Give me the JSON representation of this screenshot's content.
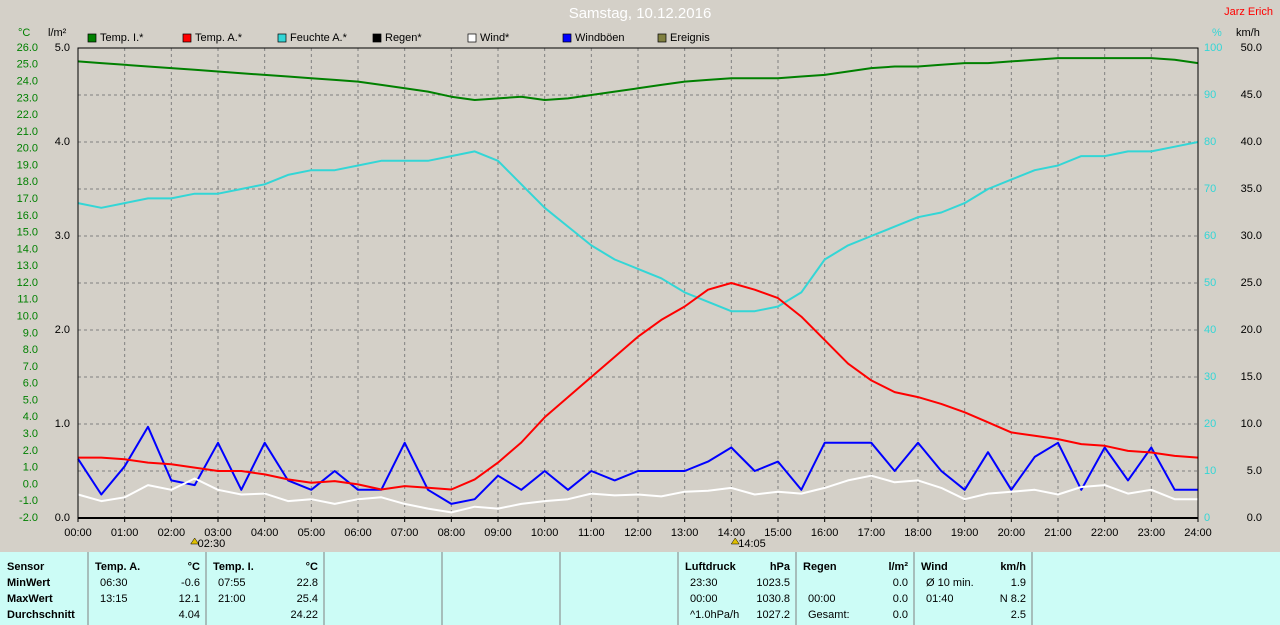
{
  "chart_data": {
    "type": "line",
    "title": "Samstag, 10.12.2016",
    "author": "Jarz Erich",
    "y_label": "°C",
    "y4_label": "l/m²",
    "y2_label": "%",
    "y3_label": "km/h",
    "grid": true,
    "x": [
      0,
      0.5,
      1,
      1.5,
      2,
      2.5,
      3,
      3.5,
      4,
      4.5,
      5,
      5.5,
      6,
      6.5,
      7,
      7.5,
      8,
      8.5,
      9,
      9.5,
      10,
      10.5,
      11,
      11.5,
      12,
      12.5,
      13,
      13.5,
      14,
      14.5,
      15,
      15.5,
      16,
      16.5,
      17,
      17.5,
      18,
      18.5,
      19,
      19.5,
      20,
      20.5,
      21,
      21.5,
      22,
      22.5,
      23,
      23.5,
      24
    ],
    "xlim": [
      0,
      24
    ],
    "xticks": [
      {
        "value": 0,
        "label": "00:00"
      },
      {
        "value": 1,
        "label": "01:00"
      },
      {
        "value": 2,
        "label": "02:00"
      },
      {
        "value": 3,
        "label": "03:00"
      },
      {
        "value": 4,
        "label": "04:00"
      },
      {
        "value": 5,
        "label": "05:00"
      },
      {
        "value": 6,
        "label": "06:00"
      },
      {
        "value": 7,
        "label": "07:00"
      },
      {
        "value": 8,
        "label": "08:00"
      },
      {
        "value": 9,
        "label": "09:00"
      },
      {
        "value": 10,
        "label": "10:00"
      },
      {
        "value": 11,
        "label": "11:00"
      },
      {
        "value": 12,
        "label": "12:00"
      },
      {
        "value": 13,
        "label": "13:00"
      },
      {
        "value": 14,
        "label": "14:00"
      },
      {
        "value": 15,
        "label": "15:00"
      },
      {
        "value": 16,
        "label": "16:00"
      },
      {
        "value": 17,
        "label": "17:00"
      },
      {
        "value": 18,
        "label": "18:00"
      },
      {
        "value": 19,
        "label": "19:00"
      },
      {
        "value": 20,
        "label": "20:00"
      },
      {
        "value": 21,
        "label": "21:00"
      },
      {
        "value": 22,
        "label": "22:00"
      },
      {
        "value": 23,
        "label": "23:00"
      },
      {
        "value": 24,
        "label": "24:00"
      }
    ],
    "ylim": [
      -2,
      26
    ],
    "yticks": [
      {
        "value": 26,
        "label": "26.0"
      },
      {
        "value": 25,
        "label": "25.0"
      },
      {
        "value": 24,
        "label": "24.0"
      },
      {
        "value": 23,
        "label": "23.0"
      },
      {
        "value": 22,
        "label": "22.0"
      },
      {
        "value": 21,
        "label": "21.0"
      },
      {
        "value": 20,
        "label": "20.0"
      },
      {
        "value": 19,
        "label": "19.0"
      },
      {
        "value": 18,
        "label": "18.0"
      },
      {
        "value": 17,
        "label": "17.0"
      },
      {
        "value": 16,
        "label": "16.0"
      },
      {
        "value": 15,
        "label": "15.0"
      },
      {
        "value": 14,
        "label": "14.0"
      },
      {
        "value": 13,
        "label": "13.0"
      },
      {
        "value": 12,
        "label": "12.0"
      },
      {
        "value": 11,
        "label": "11.0"
      },
      {
        "value": 10,
        "label": "10.0"
      },
      {
        "value": 9,
        "label": "9.0"
      },
      {
        "value": 8,
        "label": "8.0"
      },
      {
        "value": 7,
        "label": "7.0"
      },
      {
        "value": 6,
        "label": "6.0"
      },
      {
        "value": 5,
        "label": "5.0"
      },
      {
        "value": 4,
        "label": "4.0"
      },
      {
        "value": 3,
        "label": "3.0"
      },
      {
        "value": 2,
        "label": "2.0"
      },
      {
        "value": 1,
        "label": "1.0"
      },
      {
        "value": 0,
        "label": "0.0"
      },
      {
        "value": -1,
        "label": "-1.0"
      },
      {
        "value": -2,
        "label": "-2.0"
      }
    ],
    "y4lim": [
      0,
      5
    ],
    "y4ticks": [
      {
        "value": 5,
        "label": "5.0"
      },
      {
        "value": 4,
        "label": "4.0"
      },
      {
        "value": 3,
        "label": "3.0"
      },
      {
        "value": 2,
        "label": "2.0"
      },
      {
        "value": 1,
        "label": "1.0"
      },
      {
        "value": 0,
        "label": "0.0"
      }
    ],
    "y2lim": [
      0,
      100
    ],
    "y2ticks": [
      100,
      90,
      80,
      70,
      60,
      50,
      40,
      30,
      20,
      10,
      0
    ],
    "y3lim": [
      0,
      50
    ],
    "y3ticks": [
      {
        "value": 50,
        "label": "50.0"
      },
      {
        "value": 45,
        "label": "45.0"
      },
      {
        "value": 40,
        "label": "40.0"
      },
      {
        "value": 35,
        "label": "35.0"
      },
      {
        "value": 30,
        "label": "30.0"
      },
      {
        "value": 25,
        "label": "25.0"
      },
      {
        "value": 20,
        "label": "20.0"
      },
      {
        "value": 15,
        "label": "15.0"
      },
      {
        "value": 10,
        "label": "10.0"
      },
      {
        "value": 5,
        "label": "5.0"
      },
      {
        "value": 0,
        "label": "0.0"
      }
    ],
    "series": [
      {
        "name": "Temp. I.*",
        "color": "#008000",
        "axis": "y",
        "values": [
          25.2,
          25.1,
          25.0,
          24.9,
          24.8,
          24.7,
          24.6,
          24.5,
          24.4,
          24.3,
          24.2,
          24.1,
          24.0,
          23.8,
          23.6,
          23.4,
          23.1,
          22.9,
          23.0,
          23.1,
          22.9,
          23.0,
          23.2,
          23.4,
          23.6,
          23.8,
          24.0,
          24.1,
          24.2,
          24.2,
          24.2,
          24.3,
          24.4,
          24.6,
          24.8,
          24.9,
          24.9,
          25.0,
          25.1,
          25.1,
          25.2,
          25.3,
          25.4,
          25.4,
          25.4,
          25.4,
          25.4,
          25.3,
          25.1
        ]
      },
      {
        "name": "Temp. A.*",
        "color": "#ff0000",
        "axis": "y",
        "values": [
          1.6,
          1.6,
          1.5,
          1.3,
          1.2,
          1.0,
          0.8,
          0.8,
          0.6,
          0.3,
          0.1,
          0.2,
          0.0,
          -0.3,
          -0.1,
          -0.2,
          -0.3,
          0.3,
          1.3,
          2.5,
          4.0,
          5.2,
          6.4,
          7.6,
          8.8,
          9.8,
          10.6,
          11.6,
          12.0,
          11.6,
          11.1,
          10.0,
          8.6,
          7.2,
          6.2,
          5.5,
          5.2,
          4.8,
          4.3,
          3.7,
          3.1,
          2.9,
          2.7,
          2.4,
          2.3,
          2.0,
          1.9,
          1.7,
          1.6
        ]
      },
      {
        "name": "Feuchte A.*",
        "color": "#33d6d6",
        "axis": "y2",
        "values": [
          67,
          66,
          67,
          68,
          68,
          69,
          69,
          70,
          71,
          73,
          74,
          74,
          75,
          76,
          76,
          76,
          77,
          78,
          76,
          71,
          66,
          62,
          58,
          55,
          53,
          51,
          48,
          46,
          44,
          44,
          45,
          48,
          55,
          58,
          60,
          62,
          64,
          65,
          67,
          70,
          72,
          74,
          75,
          77,
          77,
          78,
          78,
          79,
          80
        ]
      },
      {
        "name": "Regen*",
        "color": "#000000",
        "axis": "y4",
        "values": [
          0,
          0,
          0,
          0,
          0,
          0,
          0,
          0,
          0,
          0,
          0,
          0,
          0,
          0,
          0,
          0,
          0,
          0,
          0,
          0,
          0,
          0,
          0,
          0,
          0,
          0,
          0,
          0,
          0,
          0,
          0,
          0,
          0,
          0,
          0,
          0,
          0,
          0,
          0,
          0,
          0,
          0,
          0,
          0,
          0,
          0,
          0,
          0,
          0
        ]
      },
      {
        "name": "Wind*",
        "color": "#ffffff",
        "axis": "y3",
        "values": [
          2.5,
          1.8,
          2.2,
          3.5,
          3.0,
          4.2,
          3.0,
          2.5,
          2.6,
          1.8,
          2.0,
          1.5,
          2.0,
          2.2,
          1.5,
          1.0,
          0.6,
          1.2,
          1.0,
          1.5,
          1.8,
          2.0,
          2.6,
          2.4,
          2.5,
          2.3,
          2.8,
          2.9,
          3.2,
          2.5,
          2.8,
          2.6,
          3.2,
          4.0,
          4.5,
          3.8,
          4.0,
          3.2,
          2.0,
          2.6,
          2.8,
          3.0,
          2.5,
          3.3,
          3.5,
          2.6,
          3.0,
          2.0,
          2.0
        ]
      },
      {
        "name": "Windböen",
        "color": "#0000ff",
        "axis": "y3",
        "values": [
          6.3,
          2.5,
          5.5,
          9.7,
          4.0,
          3.5,
          8.0,
          3.0,
          8.0,
          4.0,
          3.0,
          5.0,
          3.0,
          3.0,
          8.0,
          3.0,
          1.5,
          2.0,
          4.5,
          3.0,
          5.0,
          3.0,
          5.0,
          4.0,
          5.0,
          5.0,
          5.0,
          6.0,
          7.5,
          5.0,
          6.0,
          3.0,
          8.0,
          8.0,
          8.0,
          5.0,
          8.0,
          5.0,
          3.0,
          7.0,
          3.0,
          6.5,
          8.0,
          3.0,
          7.5,
          4.0,
          7.5,
          3.0,
          3.0
        ]
      },
      {
        "name": "Ereignis",
        "color": "#808040"
      }
    ],
    "annotations": [
      {
        "x": 2.5,
        "text": "02:30"
      },
      {
        "x": 14.0833,
        "text": "14:05"
      }
    ]
  },
  "table": {
    "columns": [
      {
        "header": "Sensor",
        "rows": [
          "MinWert",
          "MaxWert",
          "Durchschnitt"
        ]
      },
      {
        "header": "Temp. A.",
        "unit": "°C",
        "rows": [
          [
            "06:30",
            "-0.6"
          ],
          [
            "13:15",
            "12.1"
          ],
          [
            null,
            "4.04"
          ]
        ]
      },
      {
        "header": "Temp. I.",
        "unit": "°C",
        "rows": [
          [
            "07:55",
            "22.8"
          ],
          [
            "21:00",
            "25.4"
          ],
          [
            null,
            "24.22"
          ]
        ]
      },
      {
        "header": "Luftdruck",
        "unit": "hPa",
        "rows": [
          [
            "23:30",
            "1023.5"
          ],
          [
            "00:00",
            "1030.8"
          ],
          [
            "^1.0hPa/h",
            "1027.2"
          ]
        ]
      },
      {
        "header": "Regen",
        "unit": "l/m²",
        "rows": [
          [
            null,
            "0.0"
          ],
          [
            "00:00",
            "0.0"
          ],
          [
            "Gesamt:",
            "0.0"
          ]
        ]
      },
      {
        "header": "Wind",
        "unit": "km/h",
        "rows": [
          [
            "Ø 10 min.",
            "1.9"
          ],
          [
            "01:40",
            "N 8.2"
          ],
          [
            null,
            "2.5"
          ]
        ]
      }
    ]
  }
}
